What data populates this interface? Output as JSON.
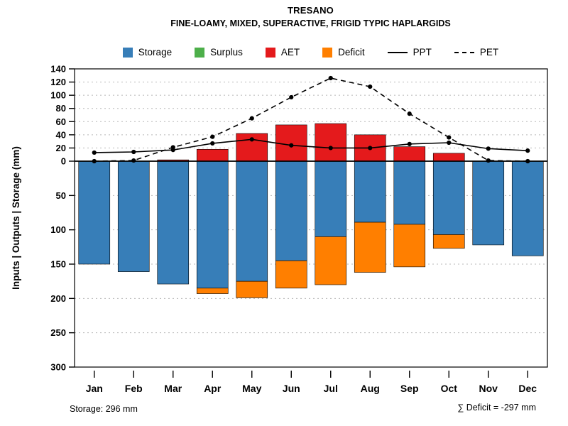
{
  "title": {
    "line1": "TRESANO",
    "line2": "FINE-LOAMY, MIXED, SUPERACTIVE, FRIGID TYPIC HAPLARGIDS"
  },
  "legend": [
    {
      "label": "Storage",
      "swatch": "box",
      "color": "#377EB8"
    },
    {
      "label": "Surplus",
      "swatch": "box",
      "color": "#4DAF4A"
    },
    {
      "label": "AET",
      "swatch": "box",
      "color": "#E41A1C"
    },
    {
      "label": "Deficit",
      "swatch": "box",
      "color": "#FF7F00"
    },
    {
      "label": "PPT",
      "swatch": "line-solid",
      "color": "#000000"
    },
    {
      "label": "PET",
      "swatch": "line-dashed",
      "color": "#000000"
    }
  ],
  "chart_data": {
    "type": "bar",
    "subtype": "water-balance: stacked monthly bars (up = inputs, down = outputs/storage) with PPT/PET lines",
    "categories": [
      "Jan",
      "Feb",
      "Mar",
      "Apr",
      "May",
      "Jun",
      "Jul",
      "Aug",
      "Sep",
      "Oct",
      "Nov",
      "Dec"
    ],
    "series": [
      {
        "name": "Storage",
        "type": "bar-down",
        "color": "#377EB8",
        "values": [
          150,
          161,
          179,
          185,
          175,
          145,
          110,
          89,
          92,
          107,
          122,
          138
        ]
      },
      {
        "name": "Surplus",
        "type": "bar-up",
        "color": "#4DAF4A",
        "values": [
          0,
          0,
          0,
          0,
          0,
          0,
          0,
          0,
          0,
          0,
          0,
          0
        ]
      },
      {
        "name": "AET",
        "type": "bar-up",
        "color": "#E41A1C",
        "values": [
          0,
          0,
          2,
          18,
          42,
          55,
          57,
          40,
          22,
          12,
          0,
          0
        ]
      },
      {
        "name": "Deficit",
        "type": "bar-down-stacked-below-storage",
        "color": "#FF7F00",
        "values": [
          0,
          0,
          0,
          8,
          24,
          40,
          70,
          73,
          62,
          20,
          0,
          0
        ]
      },
      {
        "name": "PPT",
        "type": "line",
        "style": "solid",
        "color": "#000000",
        "values": [
          13,
          14,
          17,
          27,
          33,
          24,
          20,
          20,
          26,
          28,
          19,
          16
        ]
      },
      {
        "name": "PET",
        "type": "line",
        "style": "dashed",
        "color": "#000000",
        "values": [
          0,
          1,
          21,
          37,
          65,
          97,
          126,
          113,
          72,
          36,
          1,
          0
        ]
      }
    ],
    "ylabel": "Inputs | Outputs | Storage  (mm)",
    "xlabel": "",
    "y_up": {
      "min": 0,
      "max": 140,
      "step": 20
    },
    "y_down": {
      "min": 0,
      "max": 300,
      "step": 50,
      "direction": "down"
    },
    "grid": true,
    "grid_style": "dotted-gray",
    "legend_position": "top"
  },
  "footer": {
    "storage_note": "Storage: 296 mm",
    "deficit_note": "∑ Deficit = -297 mm"
  }
}
